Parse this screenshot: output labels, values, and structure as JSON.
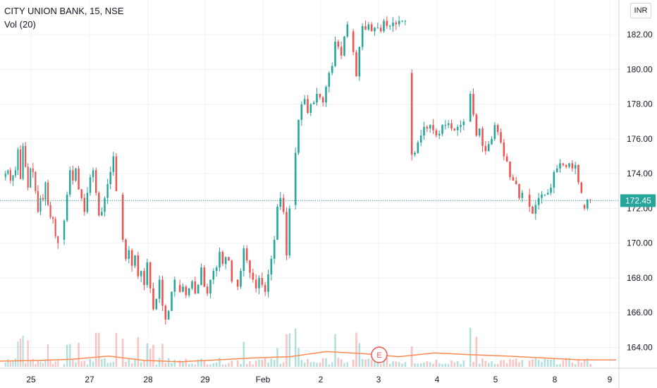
{
  "symbol_title": "CITY UNION BANK, 15, NSE",
  "volume_indicator": "Vol (20)",
  "currency_button": "INR",
  "earnings_marker": "E",
  "chart_data": {
    "type": "candlestick",
    "title": "CITY UNION BANK, 15, NSE",
    "currency": "INR",
    "last_price": 172.45,
    "last_price_label": "172.45",
    "y_axis": {
      "ticks": [
        "164.00",
        "166.00",
        "168.00",
        "170.00",
        "172.00",
        "174.00",
        "176.00",
        "178.00",
        "180.00",
        "182.00"
      ],
      "range": [
        162.8,
        184.0
      ]
    },
    "x_axis": {
      "ticks": [
        "25",
        "27",
        "28",
        "29",
        "Feb",
        "2",
        "3",
        "4",
        "5",
        "8",
        "9"
      ]
    },
    "colors": {
      "up": "#26a69a",
      "down": "#ef5350",
      "volume_ma": "#ff8a50",
      "last_price": "#26a69a"
    },
    "sessions": [
      {
        "label": "25",
        "o": 173.8,
        "path": [
          [
            174.0,
            174.2,
            173.6
          ],
          [
            173.9,
            174.2,
            175.4,
            173.7
          ],
          [
            175.6,
            174.4,
            173.2,
            174.3
          ],
          [
            174.1,
            173.0,
            171.8,
            172.6
          ],
          [
            172.5,
            173.5,
            172.2,
            171.5
          ],
          [
            171.4,
            170.4,
            170.0
          ]
        ]
      },
      {
        "label": "27",
        "o": 170.2,
        "path": [
          [
            171.3,
            172.8,
            174.2
          ],
          [
            173.6,
            174.3,
            173.1
          ],
          [
            172.6,
            171.8,
            172.9,
            173.8
          ],
          [
            174.2,
            172.9,
            171.6
          ],
          [
            171.8,
            172.6,
            173.4
          ],
          [
            174.1,
            175.0,
            173.0
          ]
        ]
      },
      {
        "label": "28",
        "o": 172.8,
        "path": [
          [
            170.2,
            169.1,
            169.6
          ],
          [
            168.7,
            169.3,
            168.1
          ],
          [
            168.4,
            167.6,
            168.9
          ],
          [
            167.4,
            166.2,
            166.8
          ],
          [
            167.9,
            166.4,
            165.6
          ],
          [
            166.1,
            167.2,
            167.9
          ]
        ]
      },
      {
        "label": "29",
        "o": 167.6,
        "path": [
          [
            167.2,
            167.5,
            167.0
          ],
          [
            167.4,
            167.8,
            167.1
          ],
          [
            167.6,
            168.6,
            167.5
          ],
          [
            167.1,
            167.9,
            168.4
          ],
          [
            168.6,
            169.5,
            168.8
          ],
          [
            169.2,
            169.0,
            167.8
          ]
        ]
      },
      {
        "label": "Feb",
        "o": 167.9,
        "path": [
          [
            167.5,
            168.4,
            169.7
          ],
          [
            169.0,
            168.3,
            167.9
          ],
          [
            167.4,
            168.0,
            167.6
          ],
          [
            167.2,
            168.2,
            169.1
          ],
          [
            170.2,
            172.1,
            172.6
          ],
          [
            171.8,
            169.3,
            172.0
          ]
        ]
      },
      {
        "label": "2",
        "o": 172.2,
        "path": [
          [
            175.2,
            177.1,
            178.0
          ],
          [
            178.3,
            177.5,
            178.0
          ],
          [
            178.1,
            178.6,
            178.4
          ],
          [
            178.1,
            179.0,
            179.8
          ],
          [
            180.2,
            181.6,
            181.3
          ],
          [
            180.8,
            181.9,
            182.6
          ]
        ]
      },
      {
        "label": "3",
        "o": 182.2,
        "path": [
          [
            181.0,
            179.6,
            181.3
          ],
          [
            182.5,
            182.3,
            182.6
          ],
          [
            182.2,
            182.4,
            182.4
          ],
          [
            182.2,
            182.8,
            182.5
          ],
          [
            182.5,
            182.7,
            182.6
          ],
          [
            182.8,
            182.8,
            182.8
          ]
        ]
      },
      {
        "label": "4",
        "o": 179.8,
        "path": [
          [
            175.1,
            175.2,
            175.8
          ],
          [
            176.2,
            176.7,
            176.6
          ],
          [
            176.8,
            176.5,
            176.2
          ],
          [
            176.3,
            176.8,
            176.8
          ],
          [
            176.9,
            176.6,
            176.5
          ],
          [
            176.7,
            176.8,
            177.0
          ]
        ]
      },
      {
        "label": "5",
        "o": 177.0,
        "path": [
          [
            178.6,
            177.4,
            176.2
          ],
          [
            176.6,
            175.6,
            175.3
          ],
          [
            175.7,
            176.0,
            176.8
          ],
          [
            176.4,
            175.8,
            175.0
          ],
          [
            174.7,
            173.8,
            173.6
          ],
          [
            173.4,
            172.6,
            172.9
          ]
        ]
      },
      {
        "label": "8",
        "o": 172.8,
        "path": [
          [
            172.1,
            171.7,
            172.2
          ],
          [
            172.6,
            172.8,
            172.8
          ],
          [
            172.9,
            173.2,
            174.1
          ],
          [
            174.3,
            174.6,
            174.5
          ],
          [
            174.4,
            174.6,
            174.3
          ],
          [
            174.5,
            173.5,
            172.9
          ]
        ]
      },
      {
        "label": "9",
        "o": 172.2,
        "path": [
          [
            172.0,
            172.5,
            172.45
          ]
        ]
      }
    ],
    "volume_ma_profile": [
      0.45,
      0.5,
      0.6,
      0.85,
      0.5,
      0.4,
      0.55,
      0.7,
      0.8,
      1.2,
      1.05,
      0.8,
      1.1,
      0.95,
      0.85,
      0.7,
      0.55,
      0.55
    ],
    "volume_axis_max": 3.0
  }
}
